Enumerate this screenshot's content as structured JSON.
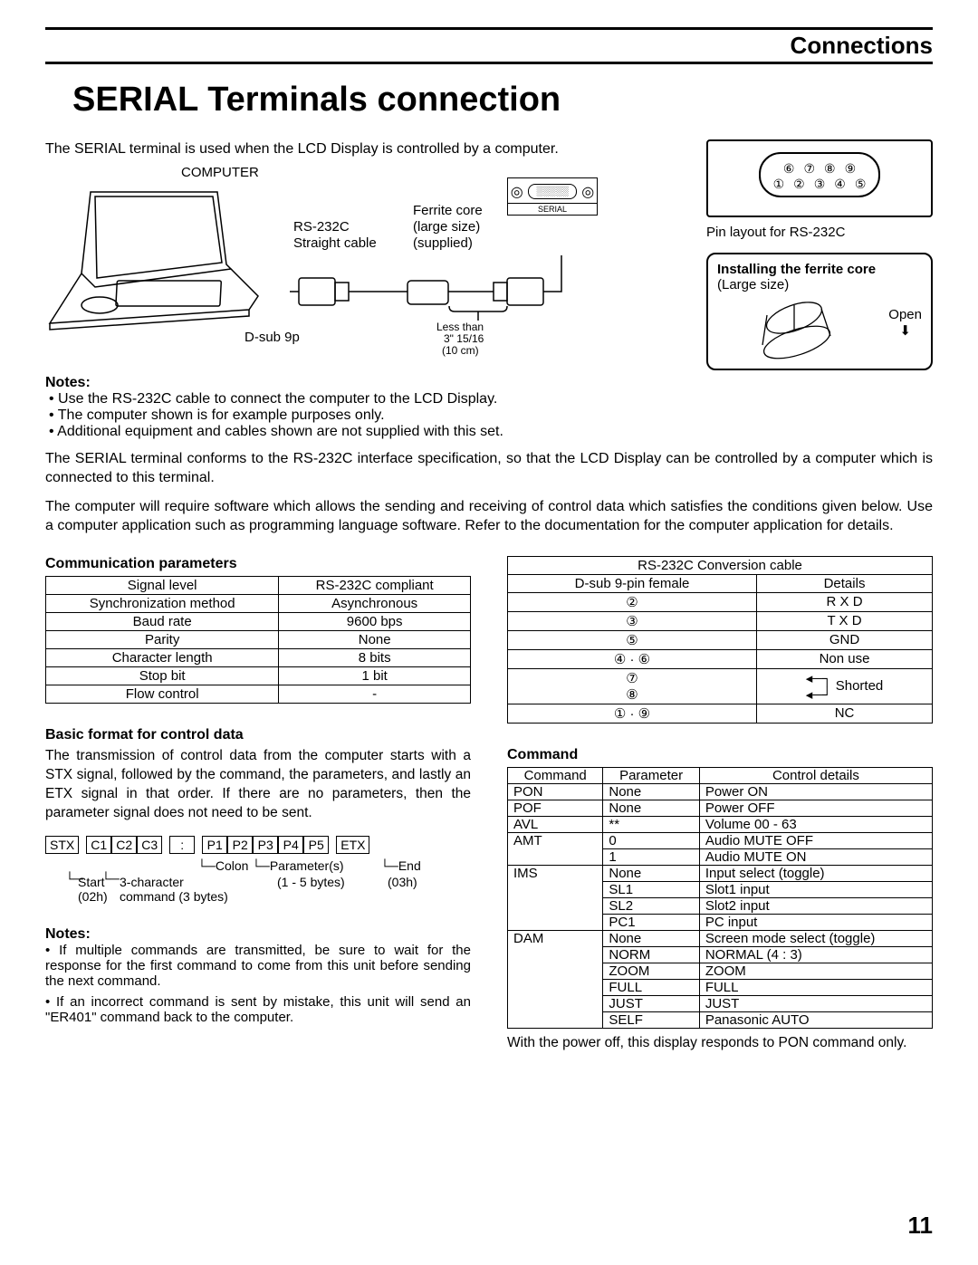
{
  "header": {
    "section": "Connections"
  },
  "title": "SERIAL Terminals connection",
  "intro": "The SERIAL terminal is used when the LCD Display is controlled by a computer.",
  "diagram": {
    "computer": "COMPUTER",
    "rs232c_l1": "RS-232C",
    "rs232c_l2": "Straight cable",
    "ferrite_l1": "Ferrite core",
    "ferrite_l2": "(large size)",
    "ferrite_l3": "(supplied)",
    "dsub": "D-sub 9p",
    "less_l1": "Less than",
    "less_l2": "3\" 15/16",
    "less_l3": "(10 cm)",
    "serial_label": "SERIAL"
  },
  "pin": {
    "caption": "Pin layout for RS-232C",
    "row1": [
      "⑥",
      "⑦",
      "⑧",
      "⑨"
    ],
    "row2": [
      "①",
      "②",
      "③",
      "④",
      "⑤"
    ]
  },
  "ferrite_install": {
    "title": "Installing the ferrite core",
    "size": "(Large size)",
    "open": "Open",
    "arrow": "⬇"
  },
  "notes_h": "Notes:",
  "notes1": [
    "Use the RS-232C cable to connect the computer to the LCD Display.",
    "The computer shown is for example purposes only.",
    "Additional equipment and cables shown are not supplied with this set."
  ],
  "para1": "The SERIAL terminal conforms to the RS-232C interface specification, so that the LCD Display can be controlled by a computer which is connected to this terminal.",
  "para2": "The computer will require software which allows the sending and receiving of control data which satisfies the conditions given below. Use a computer application such as programming language software. Refer to the documentation for the computer application for details.",
  "comm": {
    "title": "Communication parameters",
    "rows": [
      [
        "Signal level",
        "RS-232C compliant"
      ],
      [
        "Synchronization method",
        "Asynchronous"
      ],
      [
        "Baud rate",
        "9600 bps"
      ],
      [
        "Parity",
        "None"
      ],
      [
        "Character length",
        "8 bits"
      ],
      [
        "Stop bit",
        "1 bit"
      ],
      [
        "Flow control",
        "-"
      ]
    ]
  },
  "conv": {
    "title": "RS-232C Conversion cable",
    "header": [
      "D-sub 9-pin female",
      "Details"
    ],
    "rows": [
      {
        "pin": "②",
        "d": "R X D"
      },
      {
        "pin": "③",
        "d": "T X D"
      },
      {
        "pin": "⑤",
        "d": "GND"
      },
      {
        "pin": "④ · ⑥",
        "d": "Non use"
      },
      {
        "pin": "⑦⑧",
        "d": "Shorted",
        "shorted": true
      },
      {
        "pin": "① · ⑨",
        "d": "NC"
      }
    ]
  },
  "basic": {
    "title": "Basic format for control data",
    "text": "The transmission of control data from the computer starts with a STX signal, followed by the command, the parameters, and lastly an ETX signal in that order. If there are no parameters, then the parameter signal does not need to be sent.",
    "boxes": [
      "STX",
      "C1",
      "C2",
      "C3",
      ":",
      "P1",
      "P2",
      "P3",
      "P4",
      "P5",
      "ETX"
    ],
    "labels": {
      "start_l1": "Start",
      "start_l2": "(02h)",
      "cmd_l1": "3-character",
      "cmd_l2": "command (3 bytes)",
      "colon": "Colon",
      "param_l1": "Parameter(s)",
      "param_l2": "(1 - 5 bytes)",
      "end_l1": "End",
      "end_l2": "(03h)"
    }
  },
  "notes2_h": "Notes:",
  "notes2": [
    "If multiple commands are transmitted, be sure to wait for the response for the first command to come from this unit before sending the next command.",
    "If an incorrect command is sent by mistake, this unit will send an \"ER401\" command back to the computer."
  ],
  "cmd": {
    "title": "Command",
    "header": [
      "Command",
      "Parameter",
      "Control details"
    ],
    "rows": [
      [
        "PON",
        "None",
        "Power ON"
      ],
      [
        "POF",
        "None",
        "Power OFF"
      ],
      [
        "AVL",
        "**",
        "Volume 00 - 63"
      ],
      [
        "AMT",
        "0",
        "Audio MUTE OFF"
      ],
      [
        "",
        "1",
        "Audio MUTE ON"
      ],
      [
        "IMS",
        "None",
        "Input select (toggle)"
      ],
      [
        "",
        "SL1",
        "Slot1 input"
      ],
      [
        "",
        "SL2",
        "Slot2 input"
      ],
      [
        "",
        "PC1",
        "PC input"
      ],
      [
        "DAM",
        "None",
        "Screen mode select (toggle)"
      ],
      [
        "",
        "NORM",
        "NORMAL (4 : 3)"
      ],
      [
        "",
        "ZOOM",
        "ZOOM"
      ],
      [
        "",
        "FULL",
        "FULL"
      ],
      [
        "",
        "JUST",
        "JUST"
      ],
      [
        "",
        "SELF",
        "Panasonic AUTO"
      ]
    ],
    "note": "With the power off, this display responds to PON command only."
  },
  "page_number": "11"
}
